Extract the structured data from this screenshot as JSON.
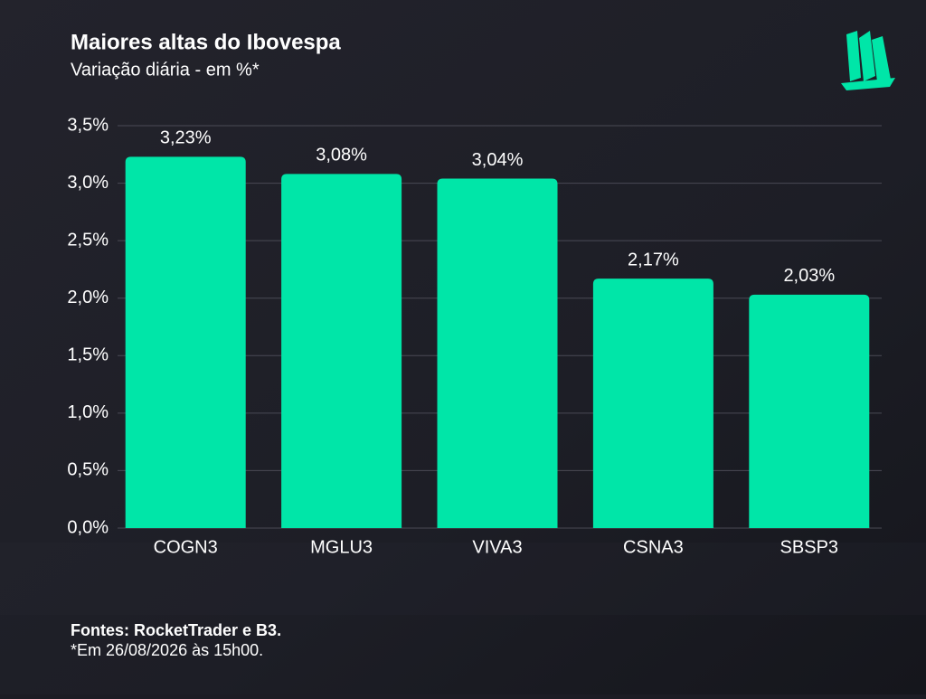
{
  "chart_data": {
    "type": "bar",
    "title": "Maiores altas do Ibovespa",
    "subtitle": "Variação diária - em %*",
    "categories": [
      "COGN3",
      "MGLU3",
      "VIVA3",
      "CSNA3",
      "SBSP3"
    ],
    "values": [
      3.23,
      3.08,
      3.04,
      2.17,
      2.03
    ],
    "value_labels": [
      "3,23%",
      "3,08%",
      "3,04%",
      "2,17%",
      "2,03%"
    ],
    "color": "#00e6a8",
    "ylim": [
      0,
      3.5
    ],
    "yticks": [
      {
        "value": 0,
        "label": "0,0%"
      },
      {
        "value": 0.5,
        "label": "0,5%"
      },
      {
        "value": 1,
        "label": "1,0%"
      },
      {
        "value": 1.5,
        "label": "1,5%"
      },
      {
        "value": 2,
        "label": "2,0%"
      },
      {
        "value": 2.5,
        "label": "2,5%"
      },
      {
        "value": 3,
        "label": "3,0%"
      },
      {
        "value": 3.5,
        "label": "3,5%"
      }
    ],
    "grid": true,
    "source": "Fontes: RocketTrader e B3.",
    "note": "*Em 26/08/2026 às 15h00."
  }
}
